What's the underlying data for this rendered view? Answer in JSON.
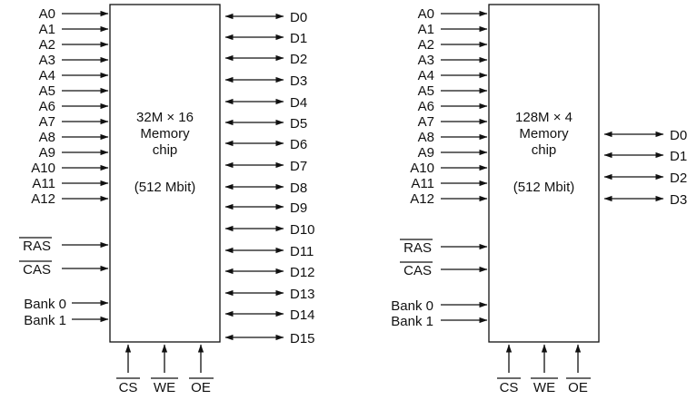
{
  "chips": [
    {
      "title_line1": "32M × 16",
      "title_line2": "Memory",
      "title_line3": "chip",
      "capacity": "(512 Mbit)",
      "address_pins": [
        "A0",
        "A1",
        "A2",
        "A3",
        "A4",
        "A5",
        "A6",
        "A7",
        "A8",
        "A9",
        "A10",
        "A11",
        "A12"
      ],
      "data_pins": [
        "D0",
        "D1",
        "D2",
        "D3",
        "D4",
        "D5",
        "D6",
        "D7",
        "D8",
        "D9",
        "D10",
        "D11",
        "D12",
        "D13",
        "D14",
        "D15"
      ],
      "strobe_pins": [
        "RAS",
        "CAS"
      ],
      "bank_pins": [
        "Bank 0",
        "Bank 1"
      ],
      "control_pins": [
        "CS",
        "WE",
        "OE"
      ]
    },
    {
      "title_line1": "128M × 4",
      "title_line2": "Memory",
      "title_line3": "chip",
      "capacity": "(512 Mbit)",
      "address_pins": [
        "A0",
        "A1",
        "A2",
        "A3",
        "A4",
        "A5",
        "A6",
        "A7",
        "A8",
        "A9",
        "A10",
        "A11",
        "A12"
      ],
      "data_pins": [
        "D0",
        "D1",
        "D2",
        "D3"
      ],
      "strobe_pins": [
        "RAS",
        "CAS"
      ],
      "bank_pins": [
        "Bank 0",
        "Bank 1"
      ],
      "control_pins": [
        "CS",
        "WE",
        "OE"
      ]
    }
  ]
}
